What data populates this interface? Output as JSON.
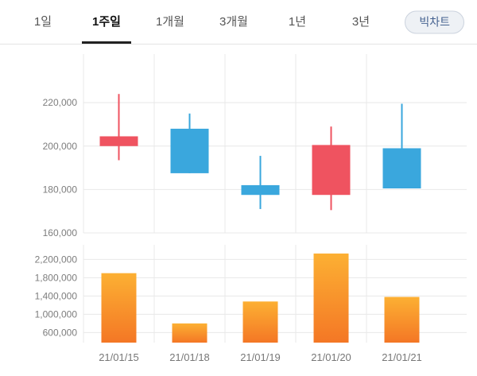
{
  "tabs": {
    "items": [
      {
        "label": "1일",
        "active": false
      },
      {
        "label": "1주일",
        "active": true
      },
      {
        "label": "1개월",
        "active": false
      },
      {
        "label": "3개월",
        "active": false
      },
      {
        "label": "1년",
        "active": false
      },
      {
        "label": "3년",
        "active": false
      }
    ],
    "big_chart_label": "빅차트"
  },
  "colors": {
    "up": "#ef5360",
    "down": "#3aa7dd",
    "volume_top": "#fcb033",
    "volume_bottom": "#f47725",
    "grid": "#e8e8e8",
    "axis_text": "#7d7d7d",
    "date_text": "#777777",
    "active_tab_underline": "#222222"
  },
  "chart_data": [
    {
      "type": "candlestick",
      "title": "Daily price (1-week view)",
      "categories": [
        "21/01/15",
        "21/01/18",
        "21/01/19",
        "21/01/20",
        "21/01/21"
      ],
      "series": [
        {
          "name": "price",
          "points": [
            {
              "open": 200000,
              "close": 204500,
              "high": 224000,
              "low": 193500,
              "direction": "up"
            },
            {
              "open": 208000,
              "close": 187500,
              "high": 215000,
              "low": 187500,
              "direction": "down"
            },
            {
              "open": 182000,
              "close": 177500,
              "high": 195500,
              "low": 171000,
              "direction": "down"
            },
            {
              "open": 177500,
              "close": 200500,
              "high": 209000,
              "low": 170500,
              "direction": "up"
            },
            {
              "open": 199000,
              "close": 180500,
              "high": 219500,
              "low": 180500,
              "direction": "down"
            }
          ]
        }
      ],
      "y_ticks": [
        160000,
        180000,
        200000,
        220000
      ],
      "ylim": [
        160000,
        238000
      ],
      "grid": true,
      "legend": false
    },
    {
      "type": "bar",
      "title": "Volume",
      "categories": [
        "21/01/15",
        "21/01/18",
        "21/01/19",
        "21/01/20",
        "21/01/21"
      ],
      "values": [
        1900000,
        800000,
        1280000,
        2330000,
        1380000
      ],
      "y_ticks": [
        600000,
        1000000,
        1400000,
        1800000,
        2200000
      ],
      "ylim": [
        380000,
        2520000
      ],
      "grid": true,
      "legend": false
    }
  ]
}
